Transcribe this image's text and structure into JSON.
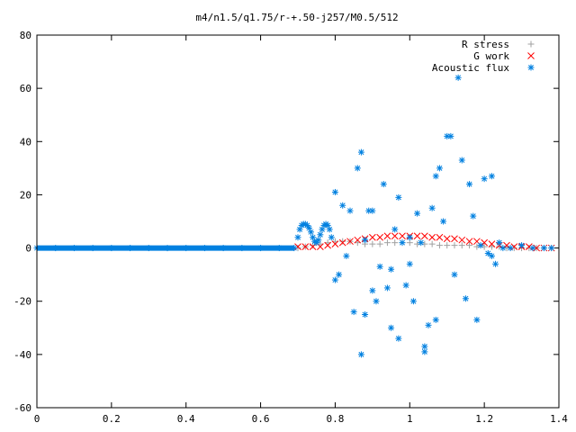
{
  "chart_data": {
    "type": "scatter",
    "title": "m4/n1.5/q1.75/r-+.50-j257/M0.5/512",
    "xlabel": "",
    "ylabel": "",
    "xlim": [
      0,
      1.4
    ],
    "ylim": [
      -60,
      80
    ],
    "xticks": [
      "0",
      "0.2",
      "0.4",
      "0.6",
      "0.8",
      "1",
      "1.2",
      "1.4"
    ],
    "yticks": [
      "-60",
      "-40",
      "-20",
      "0",
      "20",
      "40",
      "60",
      "80"
    ],
    "grid": false,
    "legend_position": "top-right",
    "series": [
      {
        "name": "R stress",
        "marker": "plus",
        "color": "#a0a0a0",
        "x": [
          0.7,
          0.72,
          0.74,
          0.76,
          0.78,
          0.8,
          0.82,
          0.84,
          0.86,
          0.88,
          0.9,
          0.92,
          0.94,
          0.96,
          0.98,
          1.0,
          1.02,
          1.04,
          1.06,
          1.08,
          1.1,
          1.12,
          1.14,
          1.16,
          1.18,
          1.2,
          1.22,
          1.24,
          1.26,
          1.28,
          1.3,
          1.32,
          1.34,
          1.36,
          1.38
        ],
        "y": [
          0.0,
          0.5,
          1.0,
          1.5,
          2.0,
          2.5,
          2.5,
          2.5,
          2.0,
          1.5,
          1.5,
          1.5,
          2.0,
          2.0,
          2.0,
          2.0,
          1.5,
          1.5,
          1.5,
          1.0,
          1.0,
          1.0,
          1.0,
          1.0,
          0.5,
          0.5,
          0.5,
          0.5,
          0.0,
          0.0,
          0.0,
          0.0,
          0.0,
          0.0,
          0.0
        ]
      },
      {
        "name": "G work",
        "marker": "cross",
        "color": "#ff0000",
        "x": [
          0.7,
          0.72,
          0.74,
          0.76,
          0.78,
          0.8,
          0.82,
          0.84,
          0.86,
          0.88,
          0.9,
          0.92,
          0.94,
          0.96,
          0.98,
          1.0,
          1.02,
          1.04,
          1.06,
          1.08,
          1.1,
          1.12,
          1.14,
          1.16,
          1.18,
          1.2,
          1.22,
          1.24,
          1.26,
          1.28,
          1.3,
          1.32,
          1.34,
          1.36,
          1.38
        ],
        "y": [
          0.5,
          0.5,
          0.5,
          0.5,
          1.0,
          1.5,
          2.0,
          2.5,
          3.0,
          3.5,
          4.0,
          4.0,
          4.5,
          4.5,
          4.5,
          4.5,
          4.5,
          4.5,
          4.0,
          4.0,
          3.5,
          3.5,
          3.0,
          2.5,
          2.5,
          2.0,
          1.5,
          1.0,
          1.0,
          0.5,
          0.5,
          0.5,
          0.0,
          0.0,
          0.0
        ]
      },
      {
        "name": "Acoustic flux",
        "marker": "star",
        "color": "#0080e0",
        "x": [
          0.0,
          0.05,
          0.1,
          0.15,
          0.2,
          0.25,
          0.3,
          0.35,
          0.4,
          0.45,
          0.5,
          0.55,
          0.6,
          0.65,
          0.69,
          0.7,
          0.705,
          0.71,
          0.715,
          0.72,
          0.725,
          0.73,
          0.735,
          0.74,
          0.745,
          0.75,
          0.755,
          0.76,
          0.765,
          0.77,
          0.775,
          0.78,
          0.785,
          0.79,
          0.8,
          0.8,
          0.81,
          0.82,
          0.83,
          0.84,
          0.85,
          0.86,
          0.87,
          0.87,
          0.88,
          0.88,
          0.89,
          0.9,
          0.9,
          0.91,
          0.92,
          0.93,
          0.94,
          0.95,
          0.95,
          0.96,
          0.97,
          0.97,
          0.98,
          0.99,
          1.0,
          1.0,
          1.01,
          1.02,
          1.03,
          1.04,
          1.04,
          1.05,
          1.06,
          1.07,
          1.07,
          1.08,
          1.09,
          1.1,
          1.11,
          1.12,
          1.13,
          1.14,
          1.15,
          1.16,
          1.17,
          1.18,
          1.19,
          1.2,
          1.21,
          1.22,
          1.22,
          1.23,
          1.24,
          1.25,
          1.27,
          1.3,
          1.33,
          1.36,
          1.38
        ],
        "y": [
          0,
          0,
          0,
          0,
          0,
          0,
          0,
          0,
          0,
          0,
          0,
          0,
          0,
          0,
          0,
          4,
          7,
          8.5,
          9,
          9,
          8.5,
          7.5,
          6,
          4,
          2.5,
          2,
          3,
          5,
          7,
          8.5,
          9,
          8.5,
          7,
          4,
          21,
          -12,
          -10,
          16,
          -3,
          14,
          -24,
          30,
          36,
          -40,
          3,
          -25,
          14,
          -16,
          14,
          -20,
          -7,
          24,
          -15,
          -30,
          -8,
          7,
          -34,
          19,
          2,
          -14,
          -6,
          4,
          -20,
          13,
          2,
          -37,
          -39,
          -29,
          15,
          27,
          -27,
          30,
          10,
          42,
          42,
          -10,
          64,
          33,
          -19,
          24,
          12,
          -27,
          1,
          26,
          -2,
          -3,
          27,
          -6,
          2,
          0,
          0,
          1,
          0,
          0,
          0
        ]
      }
    ]
  }
}
